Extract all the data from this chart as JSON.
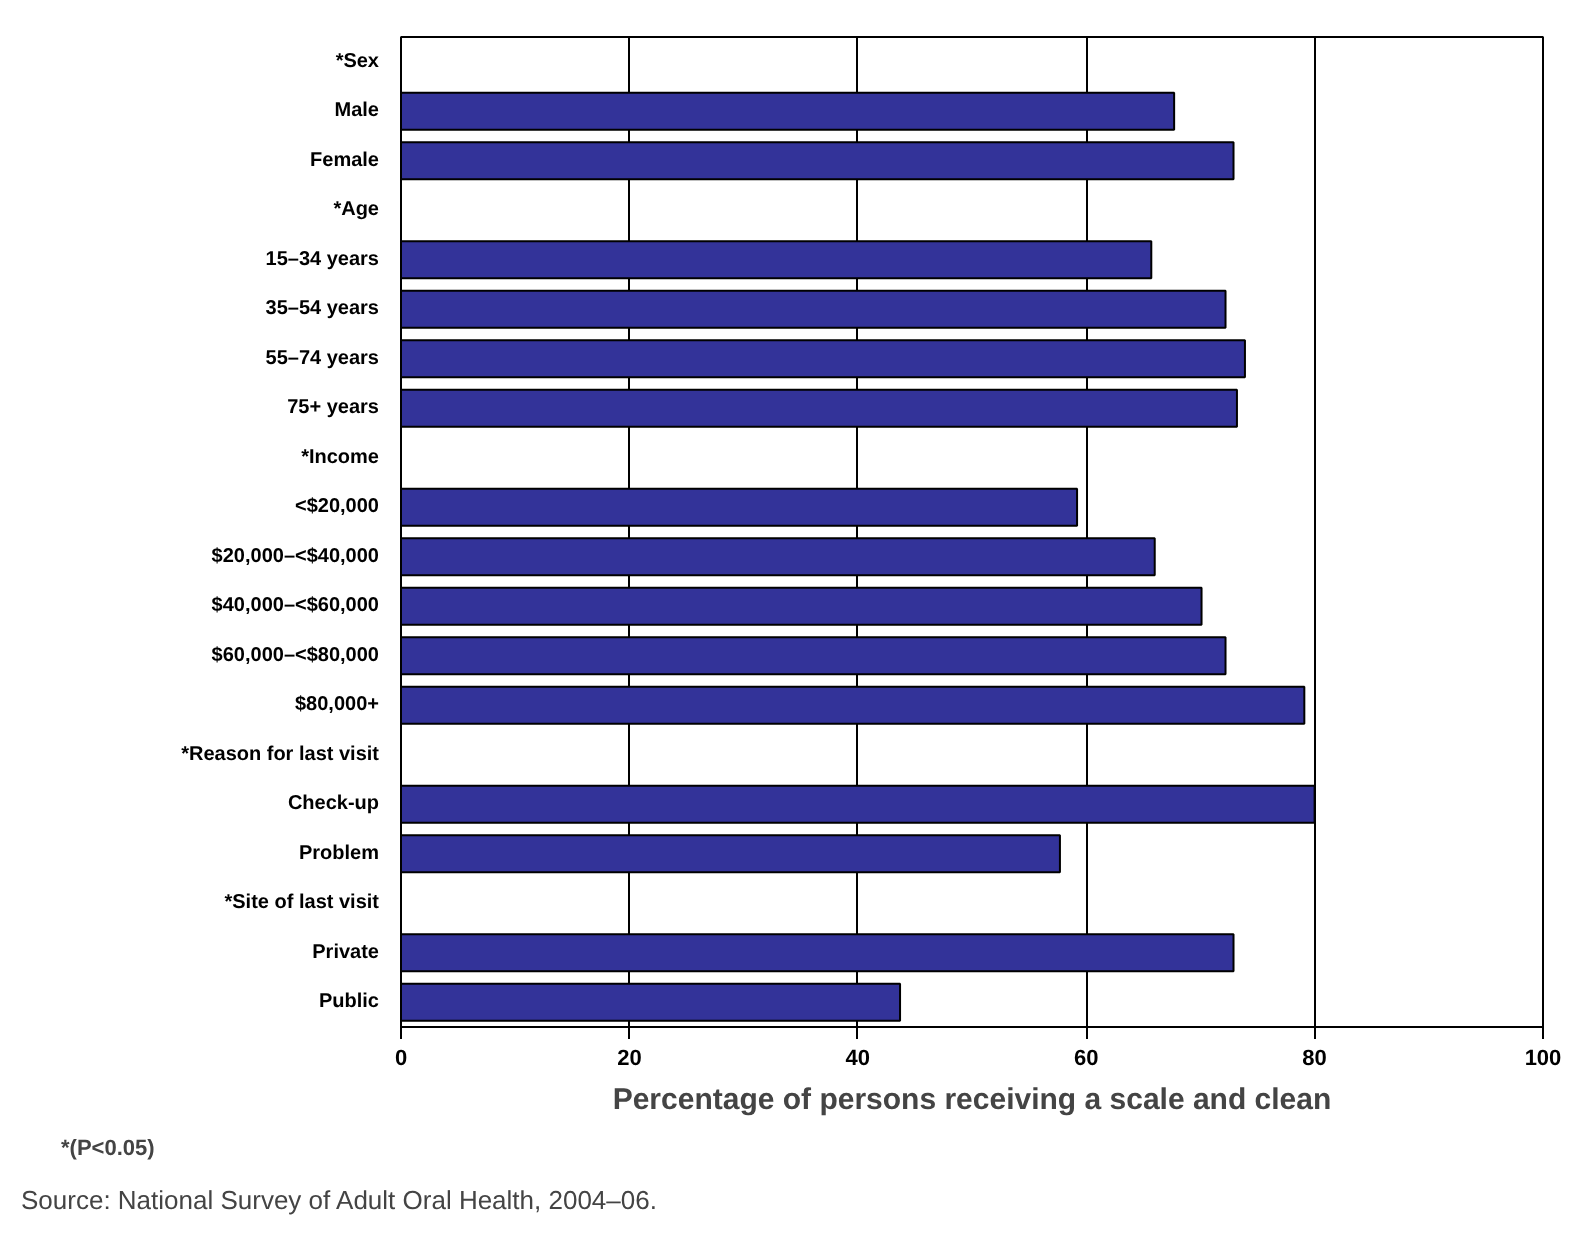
{
  "chart_data": {
    "type": "bar",
    "orientation": "horizontal",
    "xlabel": "Percentage of persons receiving a scale and clean",
    "categories": [
      "*Sex",
      "Male",
      "Female",
      "*Age",
      "15–34 years",
      "35–54 years",
      "55–74 years",
      "75+ years",
      "*Income",
      "<$20,000",
      "$20,000–<$40,000",
      "$40,000–<$60,000",
      "$60,000–<$80,000",
      "$80,000+",
      "*Reason for last visit",
      "Check-up",
      "Problem",
      "*Site of last visit",
      "Private",
      "Public"
    ],
    "values": [
      null,
      67.7,
      72.9,
      null,
      65.7,
      72.2,
      73.9,
      73.2,
      null,
      59.2,
      66.0,
      70.1,
      72.2,
      79.1,
      null,
      80.0,
      57.7,
      null,
      72.9,
      43.7
    ],
    "color": "#333399",
    "xlim": [
      0,
      100
    ],
    "xticks": [
      0,
      20,
      40,
      60,
      80,
      100
    ],
    "grid": "x",
    "annotations": [
      "*(P<0.05)",
      "Source:      National Survey of Adult Oral Health, 2004–06."
    ]
  }
}
